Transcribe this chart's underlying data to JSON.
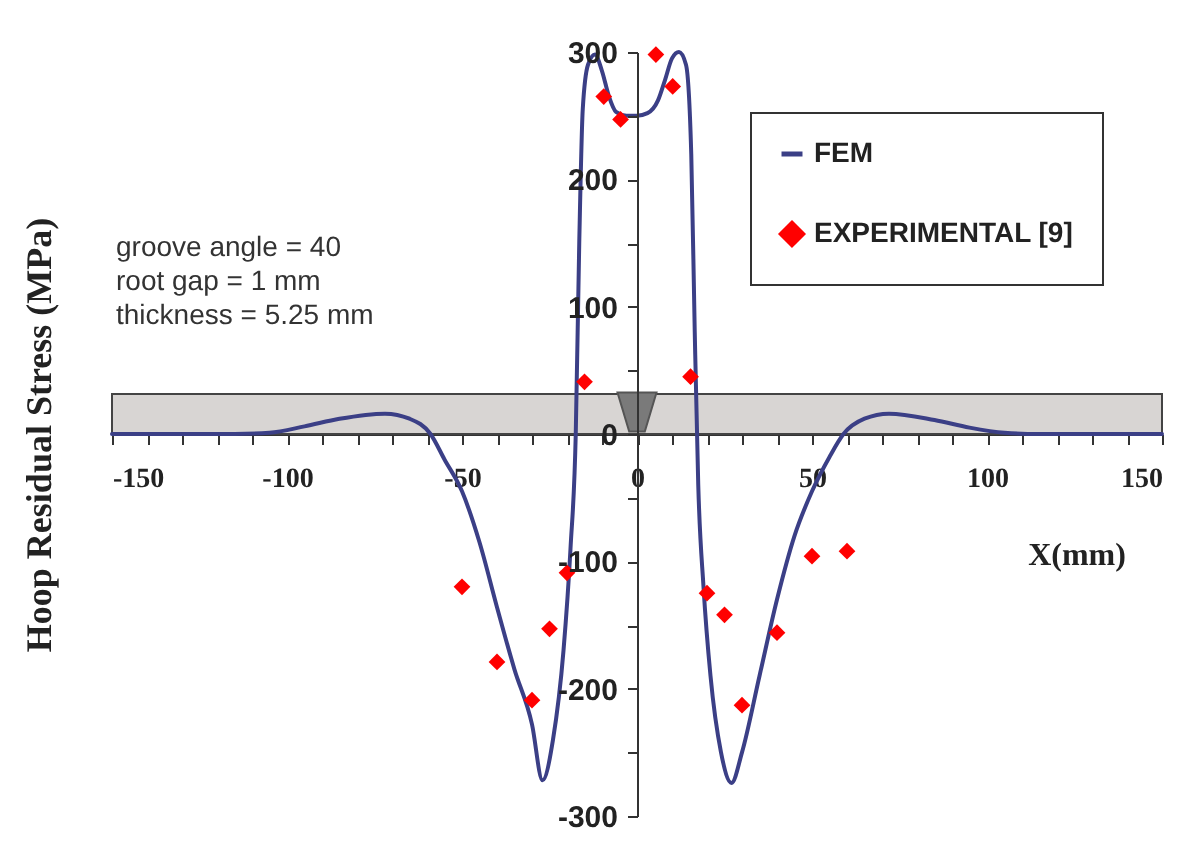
{
  "chart_data": {
    "type": "line",
    "xlabel": "X(mm)",
    "ylabel": "Hoop Residual Stress (MPa)",
    "annotations": [
      "groove angle = 40",
      "root gap = 1 mm",
      "thickness = 5.25 mm"
    ],
    "xlim": [
      -150,
      150
    ],
    "xticks": [
      -150,
      {
        "value": -140,
        "label": null
      },
      {
        "value": -130,
        "label": null
      },
      {
        "value": -120,
        "label": null
      },
      {
        "value": -110,
        "label": null
      },
      -100,
      {
        "value": -90,
        "label": null
      },
      {
        "value": -80,
        "label": null
      },
      {
        "value": -70,
        "label": null
      },
      {
        "value": -60,
        "label": null
      },
      -50,
      {
        "value": -40,
        "label": null
      },
      {
        "value": -30,
        "label": null
      },
      {
        "value": -20,
        "label": null
      },
      {
        "value": -10,
        "label": null
      },
      0,
      {
        "value": 10,
        "label": null
      },
      {
        "value": 20,
        "label": null
      },
      {
        "value": 30,
        "label": null
      },
      {
        "value": 40,
        "label": null
      },
      50,
      {
        "value": 60,
        "label": null
      },
      {
        "value": 70,
        "label": null
      },
      {
        "value": 80,
        "label": null
      },
      {
        "value": 90,
        "label": null
      },
      100,
      {
        "value": 110,
        "label": null
      },
      {
        "value": 120,
        "label": null
      },
      {
        "value": 130,
        "label": null
      },
      {
        "value": 140,
        "label": null
      },
      150
    ],
    "ylim": [
      -300,
      300
    ],
    "yticks": [
      -300,
      {
        "value": -250,
        "label": null
      },
      -200,
      {
        "value": -150,
        "label": null
      },
      -100,
      {
        "value": -50,
        "label": null
      },
      0,
      {
        "value": 50,
        "label": null
      },
      100,
      {
        "value": 150,
        "label": null
      },
      200,
      {
        "value": 250,
        "label": null
      },
      300
    ],
    "grid": false,
    "legend": "top right",
    "series": [
      {
        "name": "FEM",
        "type": "line",
        "marker": "none",
        "line_style": "solid",
        "color": "#3b3f86",
        "x": [
          -150,
          -130,
          -115,
          -105,
          -95,
          -85,
          -72,
          -65,
          -59,
          -55,
          -50,
          -45,
          -40,
          -35,
          -30,
          -27,
          -24,
          -21,
          -19,
          -17.5,
          -16.5,
          -15.5,
          -14,
          -12,
          -10,
          -8,
          -6,
          -3,
          0,
          3,
          6,
          8,
          10,
          12,
          14,
          15.5,
          16.5,
          17.5,
          19,
          21,
          24,
          27,
          30,
          35,
          40,
          45,
          50,
          55,
          59,
          65,
          72,
          85,
          95,
          105,
          115,
          130,
          150
        ],
        "values": [
          0,
          0,
          0,
          1,
          6,
          12,
          16,
          12,
          0,
          -20,
          -45,
          -85,
          -136,
          -185,
          -228,
          -272,
          -240,
          -170,
          -90,
          0,
          150,
          255,
          290,
          298,
          285,
          265,
          253,
          250,
          250,
          252,
          262,
          278,
          295,
          300,
          290,
          220,
          80,
          -40,
          -120,
          -190,
          -250,
          -274,
          -250,
          -190,
          -130,
          -80,
          -45,
          -18,
          0,
          12,
          16,
          11,
          5,
          1,
          0,
          0,
          0
        ]
      },
      {
        "name": "EXPERIMENTAL [9]",
        "type": "scatter",
        "marker": "diamond",
        "color": "#ff0000",
        "x": [
          -50,
          -40,
          -30,
          -25,
          -20,
          -15,
          -9.5,
          -4.7,
          5.4,
          10.2,
          15.3,
          20,
          25,
          30,
          40,
          50,
          60
        ],
        "values": [
          -120,
          -179,
          -209,
          -153,
          -109,
          41,
          265,
          247,
          298,
          273,
          45,
          -125,
          -142,
          -213,
          -156,
          -96,
          -92
        ]
      }
    ]
  }
}
